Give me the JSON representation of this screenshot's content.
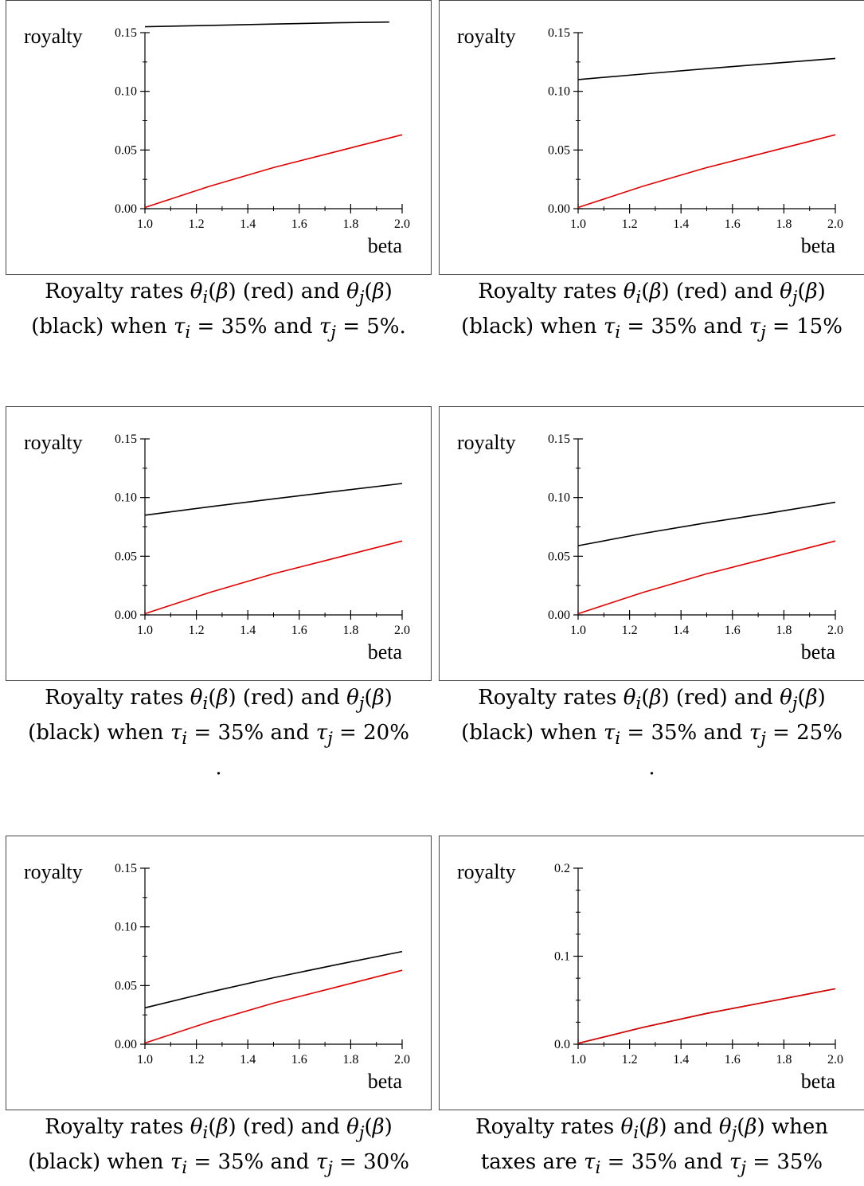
{
  "colors": {
    "theta_i": "#e00000",
    "theta_j": "#000000",
    "frame": "#444444"
  },
  "chart_data": [
    {
      "type": "line",
      "xlabel": "beta",
      "ylabel": "royalty",
      "xlim": [
        1.0,
        2.0
      ],
      "ylim": [
        0.0,
        0.15
      ],
      "xticks": [
        "1.0",
        "1.2",
        "1.4",
        "1.6",
        "1.8",
        "2.0"
      ],
      "yticks": [
        "0.00",
        "0.05",
        "0.10",
        "0.15"
      ],
      "series": [
        {
          "color": "#000000",
          "x": [
            1.0,
            1.25,
            1.5,
            1.75,
            1.95
          ],
          "y": [
            0.155,
            0.1562,
            0.1573,
            0.1584,
            0.159
          ]
        },
        {
          "color": "#e00000",
          "x": [
            1.0,
            1.25,
            1.5,
            1.75,
            2.0
          ],
          "y": [
            0.001,
            0.019,
            0.035,
            0.049,
            0.063
          ]
        }
      ],
      "caption": [
        "Royalty rates θi(β) (red) and θj(β)",
        "(black) when τi = 35% and τj = 5%."
      ]
    },
    {
      "type": "line",
      "xlabel": "beta",
      "ylabel": "royalty",
      "xlim": [
        1.0,
        2.0
      ],
      "ylim": [
        0.0,
        0.15
      ],
      "xticks": [
        "1.0",
        "1.2",
        "1.4",
        "1.6",
        "1.8",
        "2.0"
      ],
      "yticks": [
        "0.00",
        "0.05",
        "0.10",
        "0.15"
      ],
      "series": [
        {
          "color": "#000000",
          "x": [
            1.0,
            1.25,
            1.5,
            1.75,
            2.0
          ],
          "y": [
            0.11,
            0.1147,
            0.1193,
            0.1237,
            0.128
          ]
        },
        {
          "color": "#e00000",
          "x": [
            1.0,
            1.25,
            1.5,
            1.75,
            2.0
          ],
          "y": [
            0.001,
            0.019,
            0.035,
            0.049,
            0.063
          ]
        }
      ],
      "caption": [
        "Royalty rates θi(β) (red) and θj(β)",
        "(black) when τi = 35% and τj = 15%"
      ]
    },
    {
      "type": "line",
      "xlabel": "beta",
      "ylabel": "royalty",
      "xlim": [
        1.0,
        2.0
      ],
      "ylim": [
        0.0,
        0.15
      ],
      "xticks": [
        "1.0",
        "1.2",
        "1.4",
        "1.6",
        "1.8",
        "2.0"
      ],
      "yticks": [
        "0.00",
        "0.05",
        "0.10",
        "0.15"
      ],
      "series": [
        {
          "color": "#000000",
          "x": [
            1.0,
            1.25,
            1.5,
            1.75,
            2.0
          ],
          "y": [
            0.085,
            0.0921,
            0.0989,
            0.1055,
            0.112
          ]
        },
        {
          "color": "#e00000",
          "x": [
            1.0,
            1.25,
            1.5,
            1.75,
            2.0
          ],
          "y": [
            0.001,
            0.019,
            0.035,
            0.049,
            0.063
          ]
        }
      ],
      "caption": [
        "Royalty rates θi(β) (red) and θj(β)",
        "(black) when τi = 35% and τj = 20%",
        "."
      ]
    },
    {
      "type": "line",
      "xlabel": "beta",
      "ylabel": "royalty",
      "xlim": [
        1.0,
        2.0
      ],
      "ylim": [
        0.0,
        0.15
      ],
      "xticks": [
        "1.0",
        "1.2",
        "1.4",
        "1.6",
        "1.8",
        "2.0"
      ],
      "yticks": [
        "0.00",
        "0.05",
        "0.10",
        "0.15"
      ],
      "series": [
        {
          "color": "#000000",
          "x": [
            1.0,
            1.25,
            1.5,
            1.75,
            2.0
          ],
          "y": [
            0.059,
            0.0693,
            0.0785,
            0.087,
            0.096
          ]
        },
        {
          "color": "#e00000",
          "x": [
            1.0,
            1.25,
            1.5,
            1.75,
            2.0
          ],
          "y": [
            0.001,
            0.019,
            0.035,
            0.049,
            0.063
          ]
        }
      ],
      "caption": [
        "Royalty rates θi(β) (red) and θj(β)",
        "(black) when τi = 35% and τj = 25%",
        "."
      ]
    },
    {
      "type": "line",
      "xlabel": "beta",
      "ylabel": "royalty",
      "xlim": [
        1.0,
        2.0
      ],
      "ylim": [
        0.0,
        0.15
      ],
      "xticks": [
        "1.0",
        "1.2",
        "1.4",
        "1.6",
        "1.8",
        "2.0"
      ],
      "yticks": [
        "0.00",
        "0.05",
        "0.10",
        "0.15"
      ],
      "series": [
        {
          "color": "#000000",
          "x": [
            1.0,
            1.25,
            1.5,
            1.75,
            2.0
          ],
          "y": [
            0.031,
            0.0443,
            0.0567,
            0.068,
            0.079
          ]
        },
        {
          "color": "#e00000",
          "x": [
            1.0,
            1.25,
            1.5,
            1.75,
            2.0
          ],
          "y": [
            0.001,
            0.019,
            0.035,
            0.049,
            0.063
          ]
        }
      ],
      "caption": [
        "Royalty rates θi(β) (red) and θj(β)",
        "(black) when τi = 35% and τj = 30%"
      ]
    },
    {
      "type": "line",
      "xlabel": "beta",
      "ylabel": "royalty",
      "xlim": [
        1.0,
        2.0
      ],
      "ylim": [
        0.0,
        0.2
      ],
      "xticks": [
        "1.0",
        "1.2",
        "1.4",
        "1.6",
        "1.8",
        "2.0"
      ],
      "yticks": [
        "0.0",
        "0.1",
        "0.2"
      ],
      "series": [
        {
          "color": "#000000",
          "x": [
            1.0,
            1.25,
            1.5,
            1.75,
            2.0
          ],
          "y": [
            0.001,
            0.019,
            0.035,
            0.049,
            0.063
          ]
        },
        {
          "color": "#e00000",
          "x": [
            1.0,
            1.25,
            1.5,
            1.75,
            2.0
          ],
          "y": [
            0.001,
            0.019,
            0.035,
            0.049,
            0.063
          ]
        }
      ],
      "caption": [
        "Royalty rates θi(β) and θj(β) when",
        "taxes are τi = 35% and τj = 35%"
      ]
    }
  ]
}
